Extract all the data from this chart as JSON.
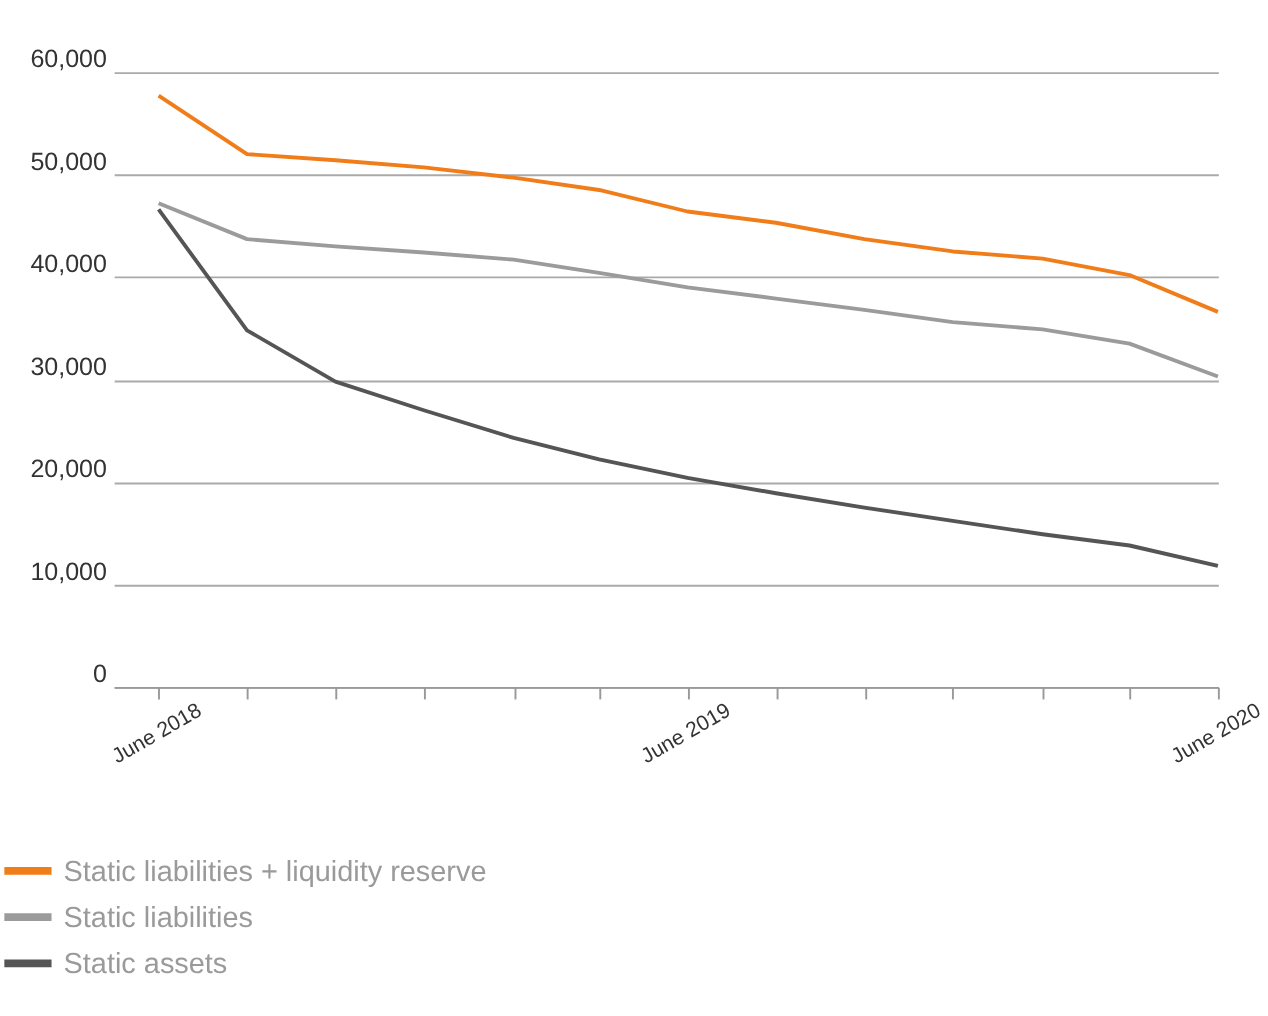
{
  "chart_data": {
    "type": "line",
    "x": [
      "2018-06",
      "2018-08",
      "2018-10",
      "2018-12",
      "2019-02",
      "2019-04",
      "2019-06",
      "2019-08",
      "2019-10",
      "2019-12",
      "2020-02",
      "2020-04",
      "2020-06"
    ],
    "series": [
      {
        "name": "Static liabilities + liquidity reserve",
        "color": "#f07d1a",
        "values": [
          57700,
          52000,
          51400,
          50700,
          49700,
          48500,
          46400,
          45300,
          43700,
          42500,
          41800,
          40200,
          36600
        ]
      },
      {
        "name": "Static liabilities",
        "color": "#9b9b9b",
        "values": [
          47200,
          43700,
          43000,
          42400,
          41700,
          40400,
          39000,
          37900,
          36800,
          35600,
          34900,
          33500,
          30300
        ]
      },
      {
        "name": "Static assets",
        "color": "#555555",
        "values": [
          46600,
          34800,
          29800,
          27000,
          24300,
          22200,
          20400,
          18900,
          17500,
          16200,
          14900,
          13800,
          11800
        ]
      }
    ],
    "xlim": [
      "2018-05",
      "2020-06"
    ],
    "xticks": [
      {
        "value": "2018-06",
        "label": "June 2018"
      },
      {
        "value": "2018-08",
        "label": null
      },
      {
        "value": "2018-10",
        "label": null
      },
      {
        "value": "2018-12",
        "label": null
      },
      {
        "value": "2019-02",
        "label": null
      },
      {
        "value": "2019-04",
        "label": null
      },
      {
        "value": "2019-06",
        "label": "June 2019"
      },
      {
        "value": "2019-08",
        "label": null
      },
      {
        "value": "2019-10",
        "label": null
      },
      {
        "value": "2019-12",
        "label": null
      },
      {
        "value": "2020-02",
        "label": null
      },
      {
        "value": "2020-04",
        "label": null
      },
      {
        "value": "2020-06",
        "label": "June 2020"
      }
    ],
    "ylim": [
      0,
      60000
    ],
    "yticks": [
      {
        "value": 0,
        "label": "0"
      },
      {
        "value": 10000,
        "label": "10,000"
      },
      {
        "value": 20000,
        "label": "20,000"
      },
      {
        "value": 30000,
        "label": "30,000"
      },
      {
        "value": 40000,
        "label": "40,000"
      },
      {
        "value": 50000,
        "label": "50,000"
      },
      {
        "value": 60000,
        "label": "60,000"
      }
    ],
    "grid": "y",
    "legend": "bottom left",
    "marker": "none",
    "line_style": "solid"
  }
}
